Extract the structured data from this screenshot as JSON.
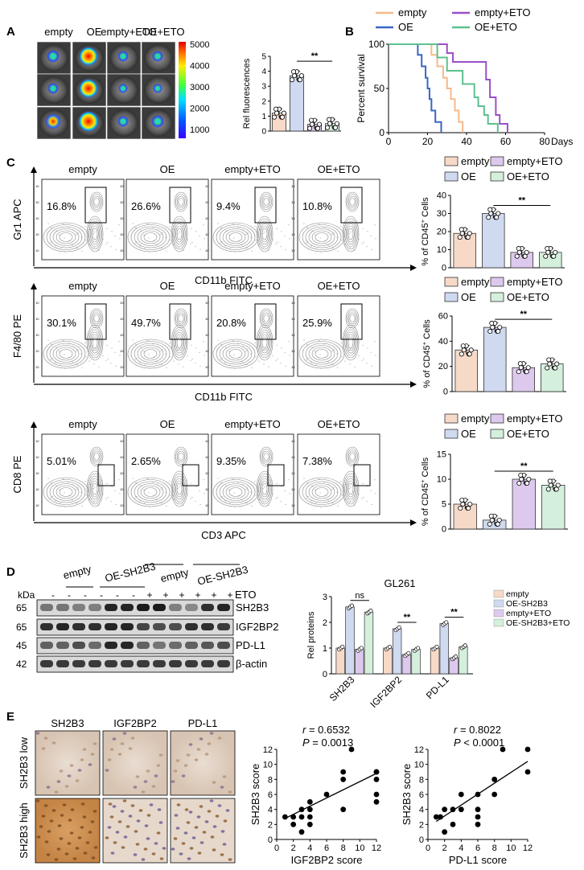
{
  "panels": {
    "A": "A",
    "B": "B",
    "C": "C",
    "D": "D",
    "E": "E"
  },
  "colors": {
    "empty": "#f6b98a",
    "OE": "#3a66c4",
    "empty_ETO": "#9b4fc6",
    "OE_ETO": "#5cc08e",
    "bar_empty": "#f7d9c8",
    "bar_OE": "#cfd9ef",
    "bar_empty_ETO": "#ddc9ee",
    "bar_OE_ETO": "#d4efdc"
  },
  "panelA": {
    "group_labels": [
      "empty",
      "OE",
      "empty+ETO",
      "OE+ETO"
    ],
    "colorbar_ticks": [
      "5000",
      "4000",
      "3000",
      "2000",
      "1000"
    ]
  },
  "chart_data": [
    {
      "id": "A_bar",
      "type": "bar",
      "categories": [
        "empty",
        "OE",
        "empty+ETO",
        "OE+ETO"
      ],
      "values": [
        1.2,
        3.7,
        0.45,
        0.5
      ],
      "ylabel": "Rel fluorescences",
      "ylim": [
        0,
        5
      ],
      "yticks": [
        "0",
        "1",
        "2",
        "3",
        "4",
        "5"
      ],
      "significance": "**"
    },
    {
      "id": "B_survival",
      "type": "line",
      "xlabel": "Days",
      "ylabel": "Percent survival",
      "xlim": [
        0,
        80
      ],
      "ylim": [
        0,
        100
      ],
      "xticks": [
        "0",
        "20",
        "40",
        "60",
        "80"
      ],
      "yticks": [
        "0",
        "50",
        "100"
      ],
      "series": [
        {
          "name": "empty",
          "points": [
            [
              0,
              100
            ],
            [
              22,
              100
            ],
            [
              22,
              88
            ],
            [
              25,
              88
            ],
            [
              25,
              75
            ],
            [
              28,
              75
            ],
            [
              28,
              62
            ],
            [
              30,
              62
            ],
            [
              30,
              50
            ],
            [
              32,
              50
            ],
            [
              32,
              38
            ],
            [
              34,
              38
            ],
            [
              34,
              25
            ],
            [
              36,
              25
            ],
            [
              36,
              12
            ],
            [
              38,
              12
            ],
            [
              38,
              0
            ]
          ]
        },
        {
          "name": "OE",
          "points": [
            [
              0,
              100
            ],
            [
              15,
              100
            ],
            [
              15,
              88
            ],
            [
              17,
              88
            ],
            [
              17,
              75
            ],
            [
              19,
              75
            ],
            [
              19,
              62
            ],
            [
              20,
              62
            ],
            [
              20,
              50
            ],
            [
              21,
              50
            ],
            [
              21,
              38
            ],
            [
              22,
              38
            ],
            [
              22,
              25
            ],
            [
              24,
              25
            ],
            [
              24,
              12
            ],
            [
              27,
              12
            ],
            [
              27,
              0
            ]
          ]
        },
        {
          "name": "empty+ETO",
          "points": [
            [
              0,
              100
            ],
            [
              30,
              100
            ],
            [
              30,
              90
            ],
            [
              33,
              90
            ],
            [
              33,
              80
            ],
            [
              50,
              80
            ],
            [
              50,
              60
            ],
            [
              52,
              60
            ],
            [
              52,
              40
            ],
            [
              55,
              40
            ],
            [
              55,
              20
            ],
            [
              57,
              20
            ],
            [
              57,
              10
            ],
            [
              61,
              10
            ],
            [
              61,
              0
            ]
          ]
        },
        {
          "name": "OE+ETO",
          "points": [
            [
              0,
              100
            ],
            [
              25,
              100
            ],
            [
              25,
              85
            ],
            [
              30,
              85
            ],
            [
              30,
              70
            ],
            [
              38,
              70
            ],
            [
              38,
              55
            ],
            [
              44,
              55
            ],
            [
              44,
              40
            ],
            [
              46,
              40
            ],
            [
              46,
              30
            ],
            [
              49,
              30
            ],
            [
              49,
              20
            ],
            [
              51,
              20
            ],
            [
              51,
              10
            ],
            [
              56,
              10
            ],
            [
              56,
              0
            ]
          ]
        }
      ]
    },
    {
      "id": "C1_bar",
      "type": "bar",
      "categories": [
        "empty",
        "OE",
        "empty+ETO",
        "OE+ETO"
      ],
      "values": [
        19,
        30,
        8.5,
        8.5
      ],
      "ylabel": "% of CD45+ Cells",
      "ylim": [
        0,
        40
      ],
      "yticks": [
        "0",
        "10",
        "20",
        "30",
        "40"
      ],
      "significance": "**"
    },
    {
      "id": "C2_bar",
      "type": "bar",
      "categories": [
        "empty",
        "OE",
        "empty+ETO",
        "OE+ETO"
      ],
      "values": [
        33,
        51,
        19,
        22
      ],
      "ylabel": "% of CD45+ Cells",
      "ylim": [
        0,
        60
      ],
      "yticks": [
        "0",
        "20",
        "40",
        "60"
      ],
      "significance": "**"
    },
    {
      "id": "C3_bar",
      "type": "bar",
      "categories": [
        "empty",
        "OE",
        "empty+ETO",
        "OE+ETO"
      ],
      "values": [
        5,
        1.8,
        10,
        8.8
      ],
      "ylabel": "% of CD45+ Cells",
      "ylim": [
        0,
        15
      ],
      "yticks": [
        "0",
        "5",
        "10",
        "15"
      ],
      "significance": "**"
    },
    {
      "id": "D_bar",
      "type": "bar",
      "title": "GL261",
      "categories": [
        "SH2B3",
        "IGF2BP2",
        "PD-L1"
      ],
      "ylabel": "Rel proteins",
      "ylim": [
        0,
        3
      ],
      "yticks": [
        "0",
        "1",
        "2",
        "3"
      ],
      "series": [
        {
          "name": "empty",
          "values": [
            1.0,
            1.0,
            1.0
          ]
        },
        {
          "name": "OE-SH2B3",
          "values": [
            2.6,
            1.75,
            1.95
          ]
        },
        {
          "name": "empty+ETO",
          "values": [
            0.95,
            0.75,
            0.62
          ]
        },
        {
          "name": "OE-SH2B3+ETO",
          "values": [
            2.4,
            0.95,
            1.05
          ]
        }
      ],
      "significance": [
        "ns",
        "**",
        "**"
      ]
    },
    {
      "id": "E1_scatter",
      "type": "scatter",
      "xlabel": "IGF2BP2 score",
      "ylabel": "SH2B3 score",
      "xlim": [
        0,
        12
      ],
      "ylim": [
        0,
        12
      ],
      "xticks": [
        "0",
        "2",
        "4",
        "6",
        "8",
        "10",
        "12"
      ],
      "yticks": [
        "0",
        "2",
        "4",
        "6",
        "8",
        "10",
        "12"
      ],
      "annotation": [
        "r = 0.6532",
        "P = 0.0013"
      ],
      "points": [
        [
          1,
          3
        ],
        [
          2,
          3
        ],
        [
          2,
          2
        ],
        [
          3,
          3
        ],
        [
          3,
          1
        ],
        [
          3,
          4
        ],
        [
          4,
          4
        ],
        [
          4,
          2
        ],
        [
          4,
          3
        ],
        [
          4,
          5
        ],
        [
          6,
          6
        ],
        [
          8,
          8
        ],
        [
          8,
          9
        ],
        [
          8,
          4
        ],
        [
          9,
          12
        ],
        [
          12,
          9
        ],
        [
          12,
          6
        ],
        [
          12,
          8
        ],
        [
          12,
          5
        ],
        [
          12,
          9
        ]
      ],
      "fit": [
        [
          1,
          2.8
        ],
        [
          12,
          8.8
        ]
      ]
    },
    {
      "id": "E2_scatter",
      "type": "scatter",
      "xlabel": "PD-L1 score",
      "ylabel": "SH2B3 score",
      "xlim": [
        0,
        12
      ],
      "ylim": [
        0,
        12
      ],
      "xticks": [
        "0",
        "2",
        "4",
        "6",
        "8",
        "10",
        "12"
      ],
      "yticks": [
        "0",
        "2",
        "4",
        "6",
        "8",
        "10",
        "12"
      ],
      "annotation": [
        "r = 0.8022",
        "P < 0.0001"
      ],
      "points": [
        [
          1,
          3
        ],
        [
          1.5,
          3
        ],
        [
          2,
          4
        ],
        [
          2,
          1
        ],
        [
          3,
          2
        ],
        [
          3,
          4
        ],
        [
          4,
          6
        ],
        [
          4,
          4
        ],
        [
          6,
          4
        ],
        [
          6,
          3
        ],
        [
          6,
          2
        ],
        [
          6,
          6
        ],
        [
          8,
          8
        ],
        [
          9,
          12
        ],
        [
          12,
          12
        ],
        [
          12,
          9
        ],
        [
          8,
          6
        ]
      ],
      "fit": [
        [
          1,
          2.4
        ],
        [
          12,
          10.4
        ]
      ]
    }
  ],
  "panelC": {
    "rows": [
      {
        "yaxis": "Gr1 APC",
        "xaxis": "CD11b FITC",
        "titles": [
          "empty",
          "OE",
          "empty+ETO",
          "OE+ETO"
        ],
        "pcts": [
          "16.8%",
          "26.6%",
          "9.4%",
          "10.8%"
        ]
      },
      {
        "yaxis": "F4/80 PE",
        "xaxis": "CD11b FITC",
        "titles": [
          "empty",
          "OE",
          "empty+ETO",
          "OE+ETO"
        ],
        "pcts": [
          "30.1%",
          "49.7%",
          "20.8%",
          "25.9%"
        ]
      },
      {
        "yaxis": "CD8 PE",
        "xaxis": "CD3 APC",
        "titles": [
          "empty",
          "OE",
          "empty+ETO",
          "OE+ETO"
        ],
        "pcts": [
          "5.01%",
          "2.65%",
          "9.35%",
          "7.38%"
        ]
      }
    ],
    "legend": [
      "empty",
      "empty+ETO",
      "OE",
      "OE+ETO"
    ]
  },
  "panelD": {
    "group_labels": [
      "empty",
      "OE-SH2B3",
      "empty",
      "OE-SH2B3"
    ],
    "kda_label": "kDa",
    "eto_row": {
      "label": "ETO",
      "signs": [
        "-",
        "-",
        "-",
        "-",
        "-",
        "-",
        "+",
        "+",
        "+",
        "+",
        "+",
        "+"
      ]
    },
    "bands": [
      {
        "kda": "65",
        "name": "SH2B3"
      },
      {
        "kda": "65",
        "name": "IGF2BP2"
      },
      {
        "kda": "45",
        "name": "PD-L1"
      },
      {
        "kda": "42",
        "name": "β-actin"
      }
    ],
    "legend": [
      "empty",
      "OE-SH2B3",
      "empty+ETO",
      "OE-SH2B3+ETO"
    ]
  },
  "panelE": {
    "col_titles": [
      "SH2B3",
      "IGF2BP2",
      "PD-L1"
    ],
    "row_titles": [
      "SH2B3 low",
      "SH2B3 high"
    ]
  }
}
